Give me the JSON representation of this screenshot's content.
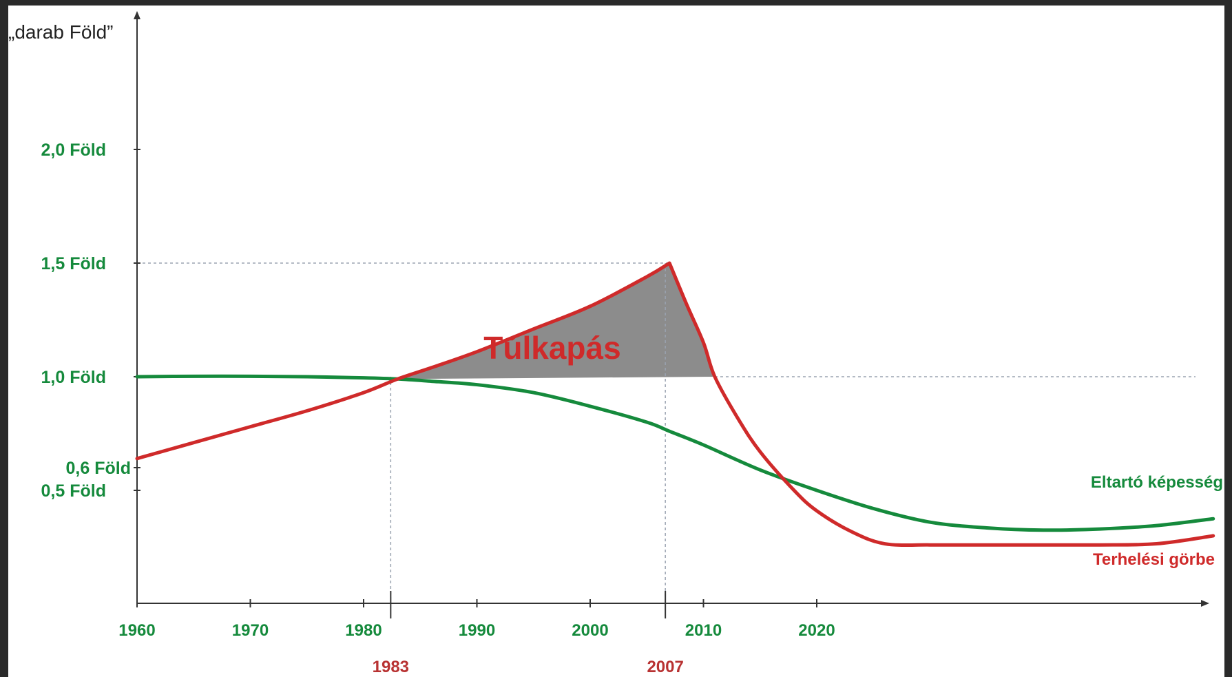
{
  "chart_data": {
    "type": "line",
    "ylabel": "„darab Föld”",
    "x_ticks": [
      1960,
      1970,
      1980,
      1990,
      2000,
      2010,
      2020
    ],
    "x_ticks_labels": [
      "1960",
      "1970",
      "1980",
      "1990",
      "2000",
      "2010",
      "2020"
    ],
    "y_ticks": [
      {
        "value": 0.5,
        "label": "0,5 Föld"
      },
      {
        "value": 0.6,
        "label": "0,6 Föld"
      },
      {
        "value": 1.0,
        "label": "1,0 Föld"
      },
      {
        "value": 1.5,
        "label": "1,5 Föld"
      },
      {
        "value": 2.0,
        "label": "2,0 Föld"
      }
    ],
    "xlim": [
      1960,
      2060
    ],
    "ylim": [
      0,
      2.6
    ],
    "annotations": [
      {
        "label": "1983",
        "x": 1983,
        "y": 1.0
      },
      {
        "label": "2007",
        "x": 2007,
        "y": 1.5
      }
    ],
    "shaded_region_label": "Túlkapás",
    "series": [
      {
        "name": "Eltartó képesség",
        "color": "#158a3c",
        "points": [
          [
            1960,
            1.0
          ],
          [
            1965,
            1.002
          ],
          [
            1970,
            1.002
          ],
          [
            1975,
            1.0
          ],
          [
            1980,
            0.995
          ],
          [
            1983,
            0.99
          ],
          [
            1986,
            0.98
          ],
          [
            1990,
            0.965
          ],
          [
            1995,
            0.93
          ],
          [
            2000,
            0.87
          ],
          [
            2005,
            0.8
          ],
          [
            2007,
            0.76
          ],
          [
            2010,
            0.7
          ],
          [
            2015,
            0.59
          ],
          [
            2020,
            0.5
          ],
          [
            2025,
            0.42
          ],
          [
            2030,
            0.36
          ],
          [
            2035,
            0.335
          ],
          [
            2040,
            0.325
          ],
          [
            2045,
            0.33
          ],
          [
            2050,
            0.345
          ],
          [
            2055,
            0.375
          ]
        ]
      },
      {
        "name": "Terhelési görbe",
        "color": "#cf2a2a",
        "points": [
          [
            1960,
            0.64
          ],
          [
            1965,
            0.71
          ],
          [
            1970,
            0.78
          ],
          [
            1975,
            0.85
          ],
          [
            1980,
            0.93
          ],
          [
            1983,
            0.99
          ],
          [
            1986,
            1.04
          ],
          [
            1990,
            1.11
          ],
          [
            1995,
            1.21
          ],
          [
            2000,
            1.31
          ],
          [
            2005,
            1.44
          ],
          [
            2007,
            1.5
          ],
          [
            2008.5,
            1.32
          ],
          [
            2010,
            1.15
          ],
          [
            2011,
            1.0
          ],
          [
            2013,
            0.82
          ],
          [
            2015,
            0.67
          ],
          [
            2018,
            0.5
          ],
          [
            2020,
            0.41
          ],
          [
            2023,
            0.32
          ],
          [
            2026,
            0.265
          ],
          [
            2030,
            0.26
          ],
          [
            2035,
            0.26
          ],
          [
            2040,
            0.26
          ],
          [
            2045,
            0.26
          ],
          [
            2050,
            0.265
          ],
          [
            2055,
            0.3
          ]
        ]
      }
    ],
    "colors": {
      "axis": "#333333",
      "tick_text": "#158a3c",
      "annotation_text": "#b83232",
      "shade": "#8c8c8c"
    }
  }
}
